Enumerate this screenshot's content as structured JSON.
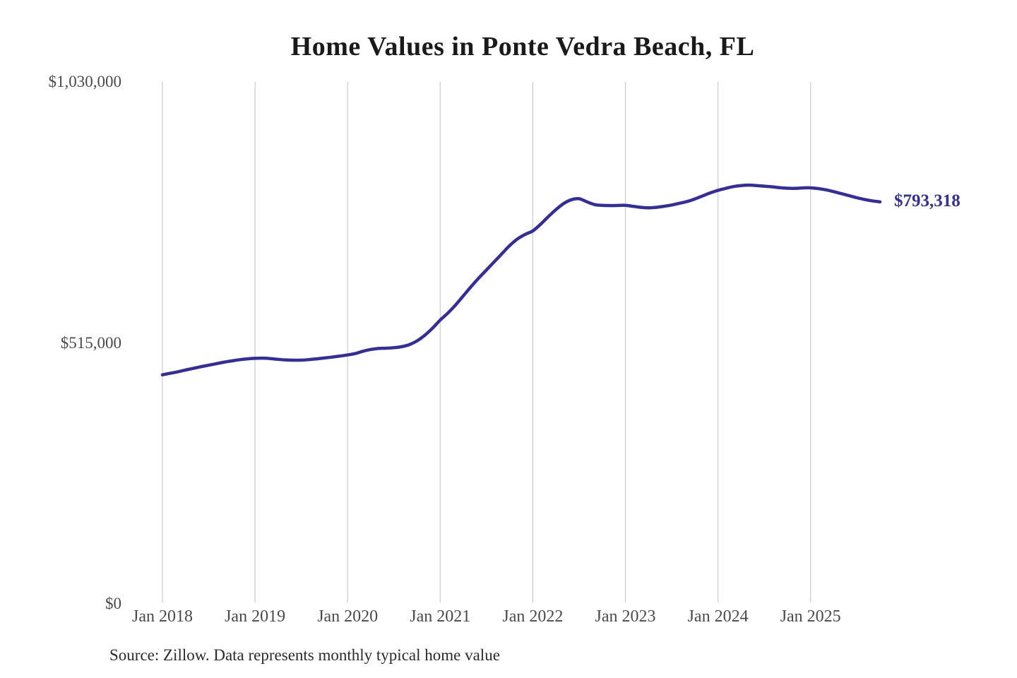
{
  "title": "Home Values in Ponte Vedra Beach, FL",
  "source_note": "Source: Zillow. Data represents monthly typical home value",
  "latest_value_label": "$793,318",
  "colors": {
    "line": "#332d9e",
    "latest_label": "#332d9e",
    "grid": "#cbcbcb",
    "title_text": "#1a1a1a",
    "tick_text": "#4a4a4a",
    "source_text": "#2b2b2b",
    "background": "#ffffff"
  },
  "y_axis": {
    "ticks": [
      {
        "label": "$1,030,000",
        "value": 1030000
      },
      {
        "label": "$515,000",
        "value": 515000
      },
      {
        "label": "$0",
        "value": 0
      }
    ]
  },
  "x_axis": {
    "ticks": [
      "Jan 2018",
      "Jan 2019",
      "Jan 2020",
      "Jan 2021",
      "Jan 2022",
      "Jan 2023",
      "Jan 2024",
      "Jan 2025"
    ]
  },
  "chart_data": {
    "type": "line",
    "title": "Home Values in Ponte Vedra Beach, FL",
    "xlabel": "",
    "ylabel": "",
    "ylim": [
      0,
      1030000
    ],
    "grid": "vertical-yearly",
    "legend_position": "none",
    "series_name": "Monthly typical home value",
    "last_point_annotation": "$793,318",
    "x": [
      "2018-01",
      "2018-02",
      "2018-03",
      "2018-04",
      "2018-05",
      "2018-06",
      "2018-07",
      "2018-08",
      "2018-09",
      "2018-10",
      "2018-11",
      "2018-12",
      "2019-01",
      "2019-02",
      "2019-03",
      "2019-04",
      "2019-05",
      "2019-06",
      "2019-07",
      "2019-08",
      "2019-09",
      "2019-10",
      "2019-11",
      "2019-12",
      "2020-01",
      "2020-02",
      "2020-03",
      "2020-04",
      "2020-05",
      "2020-06",
      "2020-07",
      "2020-08",
      "2020-09",
      "2020-10",
      "2020-11",
      "2020-12",
      "2021-01",
      "2021-02",
      "2021-03",
      "2021-04",
      "2021-05",
      "2021-06",
      "2021-07",
      "2021-08",
      "2021-09",
      "2021-10",
      "2021-11",
      "2021-12",
      "2022-01",
      "2022-02",
      "2022-03",
      "2022-04",
      "2022-05",
      "2022-06",
      "2022-07",
      "2022-08",
      "2022-09",
      "2022-10",
      "2022-11",
      "2022-12",
      "2023-01",
      "2023-02",
      "2023-03",
      "2023-04",
      "2023-05",
      "2023-06",
      "2023-07",
      "2023-08",
      "2023-09",
      "2023-10",
      "2023-11",
      "2023-12",
      "2024-01",
      "2024-02",
      "2024-03",
      "2024-04",
      "2024-05",
      "2024-06",
      "2024-07",
      "2024-08",
      "2024-09",
      "2024-10",
      "2024-11",
      "2024-12",
      "2025-01",
      "2025-02",
      "2025-03",
      "2025-04",
      "2025-05",
      "2025-06",
      "2025-07",
      "2025-08",
      "2025-09",
      "2025-10"
    ],
    "values": [
      452000,
      455000,
      458000,
      461500,
      464800,
      468000,
      471000,
      474000,
      477000,
      479500,
      481800,
      483500,
      484500,
      484800,
      484000,
      482500,
      481300,
      480800,
      481000,
      482000,
      483500,
      485200,
      487000,
      489000,
      491200,
      494000,
      498500,
      502000,
      504000,
      504500,
      505500,
      507500,
      511500,
      519000,
      530000,
      544000,
      560000,
      574000,
      590000,
      608000,
      626000,
      643000,
      659000,
      675000,
      691000,
      707000,
      720000,
      729000,
      736000,
      749000,
      764000,
      778000,
      790000,
      797500,
      799500,
      793500,
      788000,
      786500,
      786000,
      786200,
      786500,
      784500,
      782500,
      781500,
      782500,
      784500,
      787000,
      790500,
      794000,
      799000,
      805000,
      811000,
      816000,
      820000,
      823500,
      825500,
      826300,
      825500,
      824200,
      823000,
      821300,
      820200,
      820000,
      820800,
      821000,
      819500,
      817000,
      813500,
      809500,
      805500,
      801500,
      798000,
      795200,
      793318
    ]
  }
}
